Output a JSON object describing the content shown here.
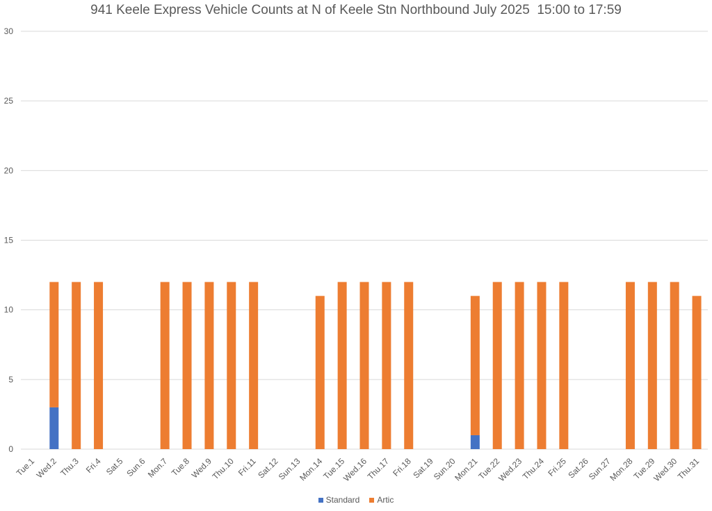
{
  "chart_data": {
    "type": "bar",
    "stacked": true,
    "title": "941 Keele Express Vehicle Counts at N of Keele Stn Northbound July 2025  15:00 to 17:59",
    "xlabel": "",
    "ylabel": "",
    "ylim": [
      0,
      30
    ],
    "yticks": [
      0,
      5,
      10,
      15,
      20,
      25,
      30
    ],
    "grid": true,
    "legend_position": "bottom",
    "categories": [
      "Tue.1",
      "Wed.2",
      "Thu.3",
      "Fri.4",
      "Sat.5",
      "Sun.6",
      "Mon.7",
      "Tue.8",
      "Wed.9",
      "Thu.10",
      "Fri.11",
      "Sat.12",
      "Sun.13",
      "Mon.14",
      "Tue.15",
      "Wed.16",
      "Thu.17",
      "Fri.18",
      "Sat.19",
      "Sun.20",
      "Mon.21",
      "Tue.22",
      "Wed.23",
      "Thu.24",
      "Fri.25",
      "Sat.26",
      "Sun.27",
      "Mon.28",
      "Tue.29",
      "Wed.30",
      "Thu.31"
    ],
    "series": [
      {
        "name": "Standard",
        "color": "#4472c4",
        "values": [
          0,
          3,
          0,
          0,
          0,
          0,
          0,
          0,
          0,
          0,
          0,
          0,
          0,
          0,
          0,
          0,
          0,
          0,
          0,
          0,
          1,
          0,
          0,
          0,
          0,
          0,
          0,
          0,
          0,
          0,
          0
        ]
      },
      {
        "name": "Artic",
        "color": "#ed7d31",
        "values": [
          0,
          9,
          12,
          12,
          0,
          0,
          12,
          12,
          12,
          12,
          12,
          0,
          0,
          11,
          12,
          12,
          12,
          12,
          0,
          0,
          10,
          12,
          12,
          12,
          12,
          0,
          0,
          12,
          12,
          12,
          11
        ]
      }
    ]
  }
}
